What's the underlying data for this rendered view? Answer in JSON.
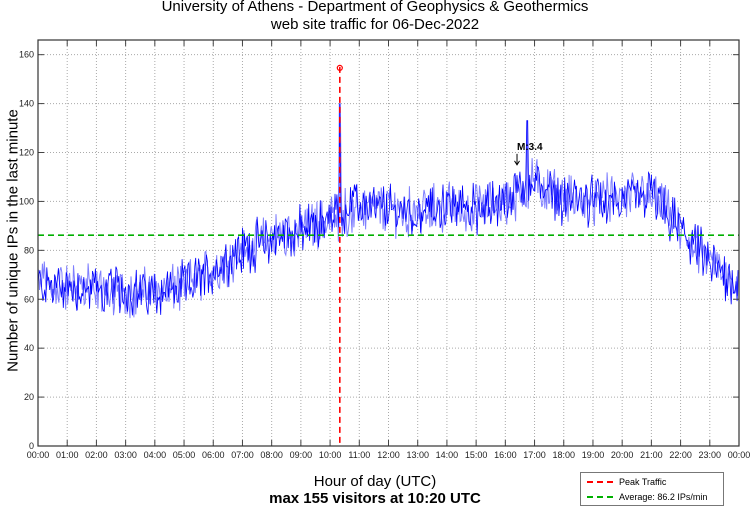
{
  "chart_data": {
    "type": "line",
    "title": "University of Athens - Department of Geophysics & Geothermics",
    "subtitle": "web site traffic for 06-Dec-2022",
    "xlabel": "Hour of day (UTC)",
    "xlabel_sub": "max 155 visitors at 10:20 UTC",
    "ylabel": "Number of unique IPs in the last minute",
    "xlim": [
      0,
      24
    ],
    "ylim": [
      0,
      166
    ],
    "grid": true,
    "x_ticks": [
      "00:00",
      "01:00",
      "02:00",
      "03:00",
      "04:00",
      "05:00",
      "06:00",
      "07:00",
      "08:00",
      "09:00",
      "10:00",
      "11:00",
      "12:00",
      "13:00",
      "14:00",
      "15:00",
      "16:00",
      "17:00",
      "18:00",
      "19:00",
      "20:00",
      "21:00",
      "22:00",
      "23:00",
      "00:00"
    ],
    "y_ticks": [
      0,
      20,
      40,
      60,
      80,
      100,
      120,
      140,
      160
    ],
    "series": [
      {
        "name": "traffic",
        "color": "#0000ff",
        "hourly_baseline": [
          66,
          65,
          64,
          63,
          63,
          65,
          72,
          80,
          85,
          88,
          93,
          98,
          97,
          95,
          98,
          97,
          100,
          108,
          101,
          100,
          101,
          103,
          88,
          75,
          66
        ],
        "noise_amplitude": 8
      }
    ],
    "peak": {
      "label": "Peak Traffic",
      "hour": 10.333,
      "value": 155,
      "color": "#ff0000"
    },
    "average": {
      "label": "Average: 86.2 IPs/min",
      "value": 86.2,
      "color": "#00b000"
    },
    "annotation": {
      "text": "M:3.4",
      "hour": 16.4,
      "value": 117
    },
    "legend_position": "bottom-right"
  }
}
